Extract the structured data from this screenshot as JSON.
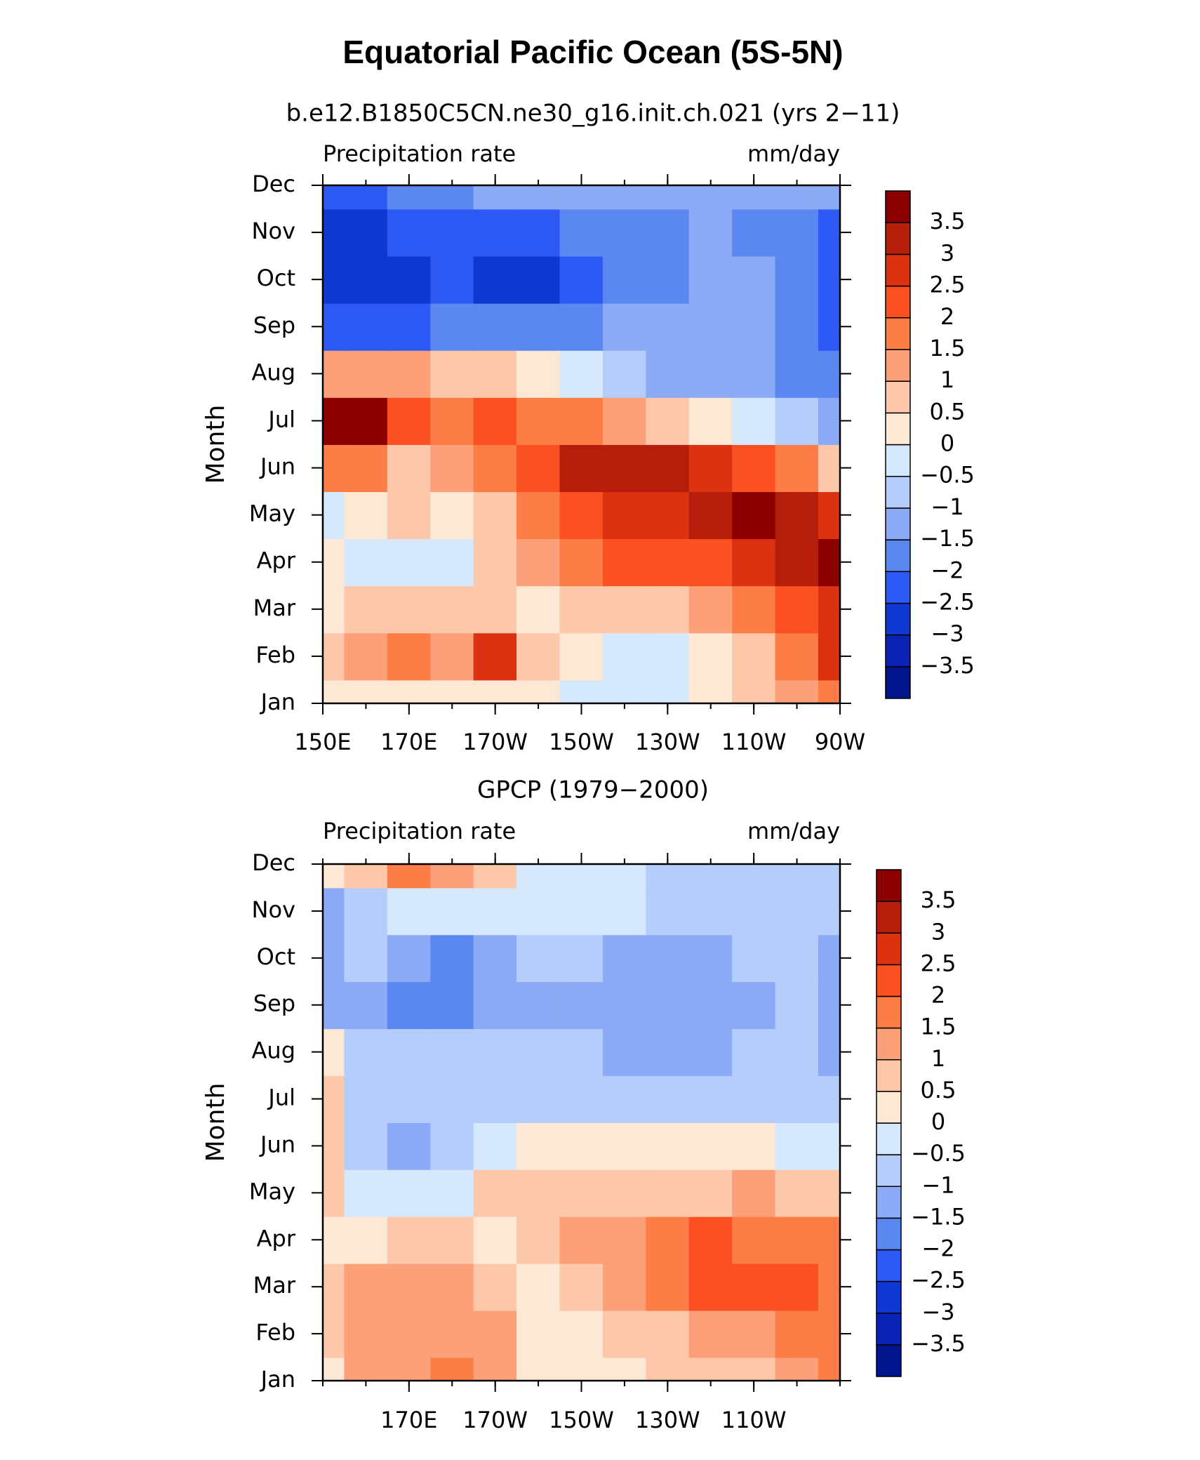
{
  "title": "Equatorial Pacific Ocean (5S-5N)",
  "chart_data": [
    {
      "type": "contour",
      "subtitle": "b.e12.B1850C5CN.ne30_g16.init.ch.021 (yrs 2−11)",
      "left_label": "Precipitation rate",
      "right_label": "mm/day",
      "ylabel": "Month",
      "x": [
        150,
        160,
        170,
        180,
        190,
        200,
        210,
        220,
        230,
        240,
        250,
        260,
        270
      ],
      "xlim": [
        150,
        270
      ],
      "xticks": [
        {
          "value": 150,
          "label": "150E"
        },
        {
          "value": 170,
          "label": "170E"
        },
        {
          "value": 190,
          "label": "170W"
        },
        {
          "value": 210,
          "label": "150W"
        },
        {
          "value": 230,
          "label": "130W"
        },
        {
          "value": 250,
          "label": "110W"
        },
        {
          "value": 270,
          "label": "90W"
        }
      ],
      "categories": [
        "Jan",
        "Feb",
        "Mar",
        "Apr",
        "May",
        "Jun",
        "Jul",
        "Aug",
        "Sep",
        "Oct",
        "Nov",
        "Dec"
      ],
      "values": [
        [
          0.3,
          0.3,
          0.3,
          0.3,
          0.3,
          0.2,
          -0.3,
          -0.3,
          -0.3,
          0.3,
          0.5,
          1.3,
          1.8
        ],
        [
          0.5,
          1.3,
          1.5,
          1.2,
          2.5,
          0.5,
          0.3,
          -0.3,
          -0.2,
          0.3,
          0.8,
          1.8,
          2.8
        ],
        [
          0.3,
          0.5,
          0.8,
          0.7,
          0.8,
          0.3,
          0.5,
          0.8,
          0.8,
          1.2,
          1.5,
          2.0,
          2.8
        ],
        [
          0.3,
          -0.3,
          -0.3,
          -0.2,
          0.5,
          1.0,
          1.5,
          2.0,
          2.0,
          2.3,
          2.5,
          3.0,
          3.8
        ],
        [
          -0.3,
          0.3,
          0.5,
          0.3,
          0.8,
          1.5,
          2.0,
          2.5,
          2.8,
          3.2,
          3.8,
          3.0,
          2.5
        ],
        [
          1.8,
          1.5,
          0.8,
          1.0,
          1.8,
          2.0,
          3.0,
          3.3,
          3.0,
          2.5,
          2.0,
          1.5,
          0.5
        ],
        [
          3.5,
          3.8,
          2.0,
          1.5,
          2.0,
          1.8,
          1.5,
          1.0,
          0.5,
          0,
          -0.5,
          -1.0,
          -1.5
        ],
        [
          1.2,
          1.0,
          1.0,
          0.8,
          0.5,
          0.0,
          -0.5,
          -1.0,
          -1.2,
          -1.5,
          -1.5,
          -1.8,
          -2.0
        ],
        [
          -2.2,
          -2.5,
          -2.2,
          -2.0,
          -1.8,
          -1.8,
          -1.8,
          -1.5,
          -1.5,
          -1.5,
          -1.5,
          -2.0,
          -2.2
        ],
        [
          -2.8,
          -2.8,
          -2.7,
          -2.4,
          -2.6,
          -2.6,
          -2.3,
          -2.0,
          -1.8,
          -1.5,
          -1.5,
          -1.8,
          -2.2
        ],
        [
          -2.7,
          -2.7,
          -2.4,
          -2.3,
          -2.5,
          -2.3,
          -1.8,
          -1.8,
          -1.6,
          -1.5,
          -1.8,
          -2.0,
          -2.2
        ],
        [
          -2.2,
          -2.2,
          -1.8,
          -1.7,
          -1.5,
          -1.5,
          -1.5,
          -1.5,
          -1.2,
          -1.2,
          -1.3,
          -1.5,
          -1.2
        ]
      ],
      "levels": [
        {
          "value": -3.5,
          "label": "−3.5"
        },
        {
          "value": -3,
          "label": "−3"
        },
        {
          "value": -2.5,
          "label": "−2.5"
        },
        {
          "value": -2,
          "label": "−2"
        },
        {
          "value": -1.5,
          "label": "−1.5"
        },
        {
          "value": -1,
          "label": "−1"
        },
        {
          "value": -0.5,
          "label": "−0.5"
        },
        0,
        0.5,
        1,
        1.5,
        2,
        2.5,
        3,
        3.5
      ],
      "colors": [
        "#00148c",
        "#0a23b4",
        "#0f37d2",
        "#2d5af5",
        "#5a87f0",
        "#8caaf5",
        "#b4cdfb",
        "#d6e8fc",
        "#fde8d6",
        "#fdc8aa",
        "#fca07a",
        "#fc7d45",
        "#fa5022",
        "#dc3212",
        "#b51e0a",
        "#8b0000"
      ]
    },
    {
      "type": "contour",
      "subtitle": "GPCP (1979−2000)",
      "left_label": "Precipitation rate",
      "right_label": "mm/day",
      "ylabel": "Month",
      "x": [
        150,
        160,
        170,
        180,
        190,
        200,
        210,
        220,
        230,
        240,
        250,
        260,
        270
      ],
      "xlim": [
        150,
        270
      ],
      "xticks": [
        {
          "value": 170,
          "label": "170E"
        },
        {
          "value": 190,
          "label": "170W"
        },
        {
          "value": 210,
          "label": "150W"
        },
        {
          "value": 230,
          "label": "130W"
        },
        {
          "value": 250,
          "label": "110W"
        }
      ],
      "categories": [
        "Jan",
        "Feb",
        "Mar",
        "Apr",
        "May",
        "Jun",
        "Jul",
        "Aug",
        "Sep",
        "Oct",
        "Nov",
        "Dec"
      ],
      "values": [
        [
          0.3,
          1.0,
          1.3,
          1.5,
          1.0,
          0.3,
          0.2,
          0.3,
          0.5,
          0.8,
          0.8,
          1.0,
          1.5
        ],
        [
          0.8,
          1.2,
          1.2,
          1.3,
          1.0,
          0.3,
          0.3,
          0.5,
          0.8,
          1.0,
          1.3,
          1.5,
          1.8
        ],
        [
          0.5,
          1.0,
          1.3,
          1.2,
          0.8,
          0.3,
          0.5,
          1.0,
          1.5,
          2.0,
          2.3,
          2.2,
          1.8
        ],
        [
          0.3,
          0.3,
          0.8,
          0.5,
          0.3,
          0.5,
          1.0,
          1.3,
          1.8,
          2.0,
          1.8,
          1.8,
          1.5
        ],
        [
          0.8,
          -0.3,
          -0.3,
          -0.3,
          0.5,
          0.5,
          0.5,
          0.8,
          0.8,
          0.8,
          1.0,
          0.8,
          0.5
        ],
        [
          0.8,
          -0.7,
          -1.2,
          -0.8,
          -0.5,
          0.0,
          0.3,
          0.3,
          0.3,
          0.2,
          0.0,
          -0.3,
          -0.3
        ],
        [
          0.8,
          -0.7,
          -0.8,
          -0.8,
          -0.8,
          -0.8,
          -0.7,
          -0.7,
          -0.8,
          -0.8,
          -0.8,
          -0.8,
          -1.0
        ],
        [
          0.3,
          -0.8,
          -0.8,
          -0.8,
          -0.8,
          -0.8,
          -1.0,
          -1.3,
          -1.3,
          -1.3,
          -1.0,
          -1.0,
          -1.3
        ],
        [
          -1.5,
          -1.3,
          -2.0,
          -1.8,
          -1.5,
          -1.2,
          -1.3,
          -1.3,
          -1.3,
          -1.3,
          -1.2,
          -1.0,
          -1.3
        ],
        [
          -1.3,
          -1.0,
          -1.2,
          -1.7,
          -1.2,
          -0.9,
          -1.0,
          -1.2,
          -1.3,
          -1.2,
          -0.8,
          -0.8,
          -1.2
        ],
        [
          -1.2,
          -0.8,
          -0.5,
          -0.5,
          -0.5,
          -0.3,
          -0.5,
          -0.5,
          -0.8,
          -0.8,
          -0.8,
          -0.8,
          -0.8
        ],
        [
          0.3,
          0.8,
          1.5,
          1.0,
          0.5,
          -0.3,
          -0.3,
          -0.5,
          -0.7,
          -0.7,
          -0.8,
          -0.8,
          -0.8
        ]
      ],
      "levels": [
        {
          "value": -3.5,
          "label": "−3.5"
        },
        {
          "value": -3,
          "label": "−3"
        },
        {
          "value": -2.5,
          "label": "−2.5"
        },
        {
          "value": -2,
          "label": "−2"
        },
        {
          "value": -1.5,
          "label": "−1.5"
        },
        {
          "value": -1,
          "label": "−1"
        },
        {
          "value": -0.5,
          "label": "−0.5"
        },
        0,
        0.5,
        1,
        1.5,
        2,
        2.5,
        3,
        3.5
      ],
      "colors": [
        "#00148c",
        "#0a23b4",
        "#0f37d2",
        "#2d5af5",
        "#5a87f0",
        "#8caaf5",
        "#b4cdfb",
        "#d6e8fc",
        "#fde8d6",
        "#fdc8aa",
        "#fca07a",
        "#fc7d45",
        "#fa5022",
        "#dc3212",
        "#b51e0a",
        "#8b0000"
      ]
    }
  ]
}
